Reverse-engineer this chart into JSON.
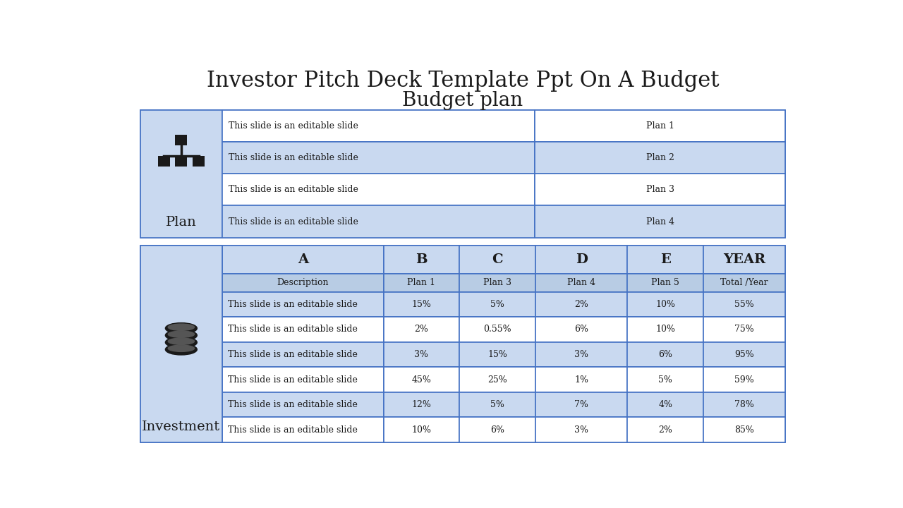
{
  "title": "Investor Pitch Deck Template Ppt On A Budget",
  "subtitle": "Budget plan",
  "bg_color": "#ffffff",
  "table_border_color": "#4472c4",
  "row_color_light": "#c9d9f0",
  "row_color_white": "#dce9f8",
  "row_color_mid": "#b8cce4",
  "plan_section": {
    "label": "Plan",
    "rows": [
      [
        "This slide is an editable slide",
        "Plan 1"
      ],
      [
        "This slide is an editable slide",
        "Plan 2"
      ],
      [
        "This slide is an editable slide",
        "Plan 3"
      ],
      [
        "This slide is an editable slide",
        "Plan 4"
      ]
    ],
    "row_colors": [
      "#ffffff",
      "#c9d9f0",
      "#ffffff",
      "#c9d9f0"
    ]
  },
  "investment_section": {
    "label": "Investment",
    "headers_top": [
      "",
      "A",
      "B",
      "C",
      "D",
      "E",
      "YEAR"
    ],
    "headers_sub": [
      "Description",
      "Plan 1",
      "Plan 3",
      "Plan 4",
      "Plan 5",
      "Total /Year"
    ],
    "rows": [
      [
        "This slide is an editable slide",
        "15%",
        "5%",
        "2%",
        "10%",
        "55%"
      ],
      [
        "This slide is an editable slide",
        "2%",
        "0.55%",
        "6%",
        "10%",
        "75%"
      ],
      [
        "This slide is an editable slide",
        "3%",
        "15%",
        "3%",
        "6%",
        "95%"
      ],
      [
        "This slide is an editable slide",
        "45%",
        "25%",
        "1%",
        "5%",
        "59%"
      ],
      [
        "This slide is an editable slide",
        "12%",
        "5%",
        "7%",
        "4%",
        "78%"
      ],
      [
        "This slide is an editable slide",
        "10%",
        "6%",
        "3%",
        "2%",
        "85%"
      ]
    ],
    "row_colors": [
      "#c9d9f0",
      "#ffffff",
      "#c9d9f0",
      "#ffffff",
      "#c9d9f0",
      "#ffffff"
    ]
  },
  "font_family": "serif",
  "title_fontsize": 22,
  "subtitle_fontsize": 20,
  "cell_fontsize": 9,
  "header_fontsize": 14,
  "label_fontsize": 14
}
